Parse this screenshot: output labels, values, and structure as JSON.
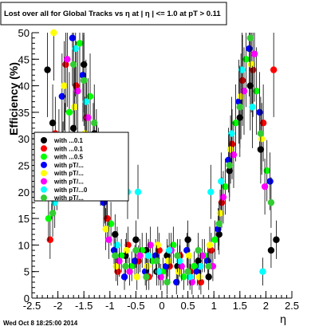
{
  "chart_data": {
    "type": "scatter",
    "title": "Lost over all for Global Tracks vs    η at |  η | <= 1.0 at pT > 0.11",
    "xlabel": "η",
    "ylabel": "Efficiency (%)",
    "xlim": [
      -2.5,
      2.5
    ],
    "ylim": [
      0,
      50
    ],
    "x_ticks": [
      "-2.5",
      "-2",
      "-1.5",
      "-1",
      "-0.5",
      "0",
      "0.5",
      "1",
      "1.5",
      "2",
      "2.5"
    ],
    "y_ticks": [
      "0",
      "5",
      "10",
      "15",
      "20",
      "25",
      "30",
      "35",
      "40",
      "45",
      "50"
    ],
    "grid": false,
    "legend_placement": "center-left",
    "series": [
      {
        "name": "with ... 0.1",
        "color": "#000000",
        "x": [
          -2.2,
          -2.1,
          -1.9,
          -1.7,
          -1.5,
          -1.3,
          -1.1,
          -0.9,
          -0.7,
          -0.5,
          -0.3,
          -0.1,
          0.1,
          0.3,
          0.5,
          0.7,
          0.9,
          1.1,
          1.3,
          1.5,
          1.7,
          1.9,
          2.1,
          2.2
        ],
        "y": [
          43,
          33,
          27,
          32,
          44,
          31,
          20,
          12,
          8,
          11,
          9,
          5,
          8,
          6,
          11,
          7,
          4,
          12,
          24,
          34,
          40,
          28,
          9,
          11
        ]
      },
      {
        "name": "with ... 0.1",
        "color": "#ff0000",
        "x": [
          -2.15,
          -2.05,
          -1.85,
          -1.65,
          -1.45,
          -1.25,
          -1.05,
          -0.85,
          -0.65,
          -0.45,
          -0.25,
          -0.05,
          0.15,
          0.35,
          0.55,
          0.75,
          0.95,
          1.15,
          1.35,
          1.55,
          1.75,
          1.95,
          2.15
        ],
        "y": [
          11,
          31,
          44,
          40,
          34,
          27,
          15,
          5,
          10,
          7,
          4,
          9,
          6,
          8,
          5,
          3,
          9,
          18,
          29,
          41,
          43,
          33,
          43
        ]
      },
      {
        "name": "with ... 0.5",
        "color": "#00ff00",
        "x": [
          -2.18,
          -1.98,
          -1.78,
          -1.58,
          -1.38,
          -1.18,
          -0.98,
          -0.78,
          -0.58,
          -0.38,
          -0.18,
          0.02,
          0.22,
          0.42,
          0.62,
          0.82,
          1.02,
          1.22,
          1.42,
          1.62,
          1.82,
          2.02
        ],
        "y": [
          15,
          29,
          35,
          48,
          38,
          23,
          14,
          8,
          6,
          9,
          7,
          5,
          10,
          4,
          6,
          8,
          11,
          21,
          33,
          45,
          39,
          24
        ]
      },
      {
        "name": "with pT/... ",
        "color": "#0000ff",
        "x": [
          -2.12,
          -1.92,
          -1.72,
          -1.52,
          -1.32,
          -1.12,
          -0.92,
          -0.72,
          -0.52,
          -0.32,
          -0.12,
          0.08,
          0.28,
          0.48,
          0.68,
          0.88,
          1.08,
          1.28,
          1.48,
          1.68,
          1.88,
          2.08
        ],
        "y": [
          20,
          38,
          49,
          42,
          30,
          18,
          9,
          4,
          7,
          5,
          8,
          6,
          3,
          9,
          5,
          7,
          13,
          26,
          37,
          47,
          35,
          22
        ]
      },
      {
        "name": "with pT/...",
        "color": "#ffff00",
        "x": [
          -2.08,
          -1.88,
          -1.68,
          -1.48,
          -1.28,
          -1.08,
          -0.88,
          -0.68,
          -0.48,
          -0.28,
          -0.08,
          0.12,
          0.32,
          0.52,
          0.72,
          0.92,
          1.12,
          1.32,
          1.52,
          1.72,
          1.92
        ],
        "y": [
          50,
          40,
          36,
          31,
          25,
          13,
          6,
          9,
          4,
          6,
          10,
          7,
          5,
          8,
          4,
          10,
          16,
          28,
          38,
          44,
          30
        ]
      },
      {
        "name": "with pT/...",
        "color": "#ff00ff",
        "x": [
          -2.02,
          -1.82,
          -1.62,
          -1.42,
          -1.22,
          -1.02,
          -0.82,
          -0.62,
          -0.42,
          -0.22,
          -0.02,
          0.18,
          0.38,
          0.58,
          0.78,
          0.98,
          1.18,
          1.38,
          1.58,
          1.78,
          1.98
        ],
        "y": [
          22,
          45,
          39,
          34,
          26,
          11,
          7,
          5,
          8,
          10,
          4,
          9,
          6,
          3,
          8,
          6,
          19,
          27,
          39,
          46,
          21
        ]
      },
      {
        "name": "with pT/...0",
        "color": "#00ffff",
        "x": [
          -2.06,
          -1.86,
          -1.66,
          -1.46,
          -1.26,
          -1.06,
          -0.86,
          -0.66,
          -0.46,
          -0.26,
          -0.06,
          0.14,
          0.34,
          0.54,
          0.74,
          0.94,
          1.14,
          1.34,
          1.54,
          1.74,
          1.94
        ],
        "y": [
          18,
          30,
          47,
          37,
          29,
          20,
          10,
          20,
          20,
          8,
          5,
          9,
          7,
          4,
          6,
          20,
          22,
          31,
          43,
          36,
          5
        ]
      },
      {
        "name": "with pT/...",
        "color": "#33cc33",
        "x": [
          -2.1,
          -1.9,
          -1.7,
          -1.5,
          -1.3,
          -1.1,
          -0.9,
          -0.7,
          -0.5,
          -0.3,
          -0.1,
          0.1,
          0.3,
          0.5,
          0.7,
          0.9,
          1.1,
          1.3,
          1.5,
          1.7,
          1.9,
          2.1
        ],
        "y": [
          16,
          27,
          44,
          41,
          33,
          19,
          8,
          6,
          9,
          4,
          7,
          3,
          8,
          5,
          9,
          6,
          14,
          25,
          36,
          49,
          31,
          18
        ]
      }
    ]
  },
  "legend": {
    "entries": [
      {
        "label": "with ...0.1",
        "color": "#000000"
      },
      {
        "label": "with ...0.1",
        "color": "#ff0000"
      },
      {
        "label": "with ...0.5",
        "color": "#00ff00"
      },
      {
        "label": "with pT/...",
        "color": "#0000ff"
      },
      {
        "label": "with pT/...",
        "color": "#ffff00"
      },
      {
        "label": "with pT/...",
        "color": "#ff00ff"
      },
      {
        "label": "with pT/...0",
        "color": "#00ffff"
      },
      {
        "label": "with pT/...",
        "color": "#33cc33"
      }
    ]
  },
  "footer": {
    "timestamp": "Wed Oct  8 18:25:00 2014"
  }
}
